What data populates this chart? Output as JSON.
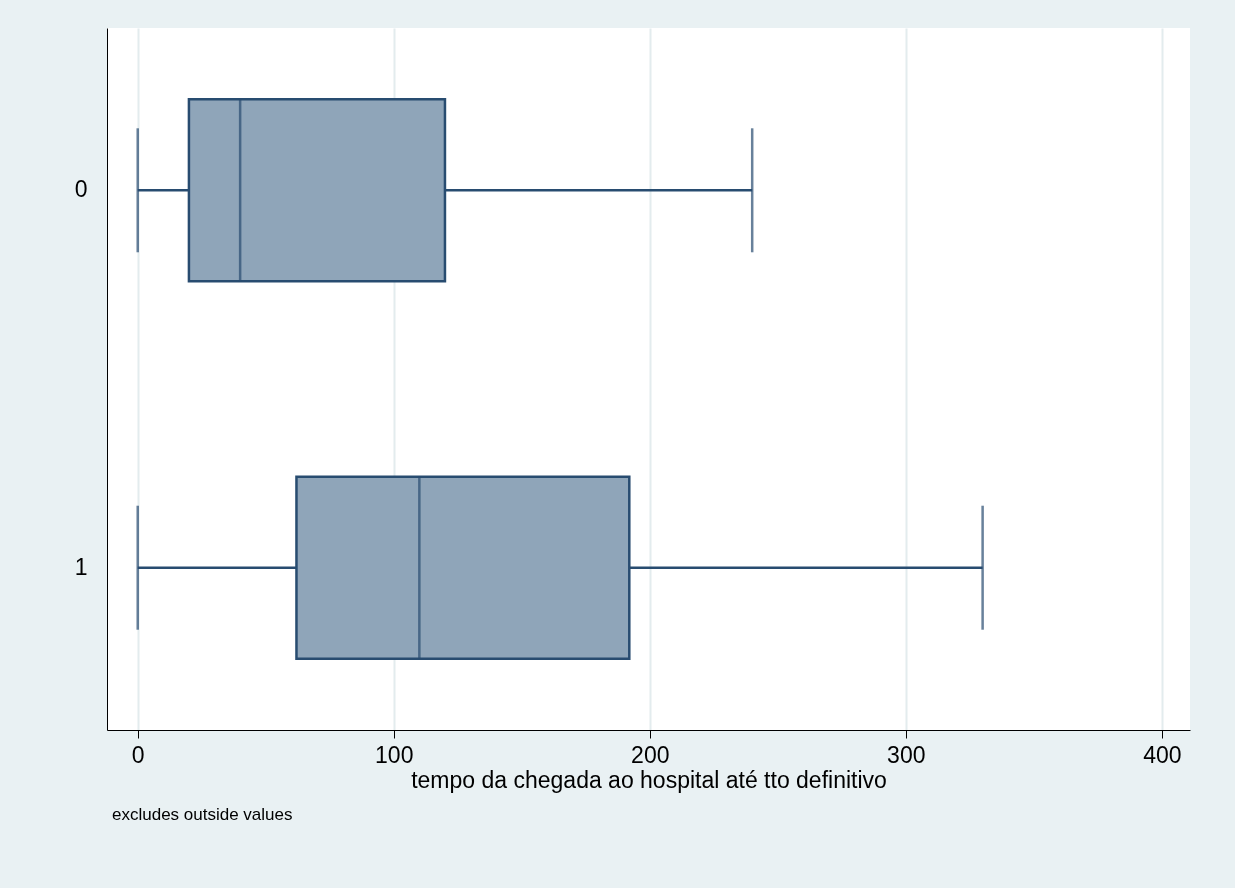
{
  "chart_data": {
    "type": "box",
    "orientation": "horizontal",
    "categories": [
      "0",
      "1"
    ],
    "boxes": [
      {
        "low": 0,
        "q1": 20,
        "median": 40,
        "q3": 120,
        "high": 240
      },
      {
        "low": 0,
        "q1": 62,
        "median": 110,
        "q3": 192,
        "high": 330
      }
    ],
    "color": "#8fa5b9",
    "xlabel": "tempo da chegada ao hospital até tto definitivo",
    "xlim": [
      -12,
      411
    ],
    "xticks": [
      0,
      100,
      200,
      300,
      400
    ],
    "grid": "x",
    "annotations": [
      "excludes outside values"
    ]
  }
}
